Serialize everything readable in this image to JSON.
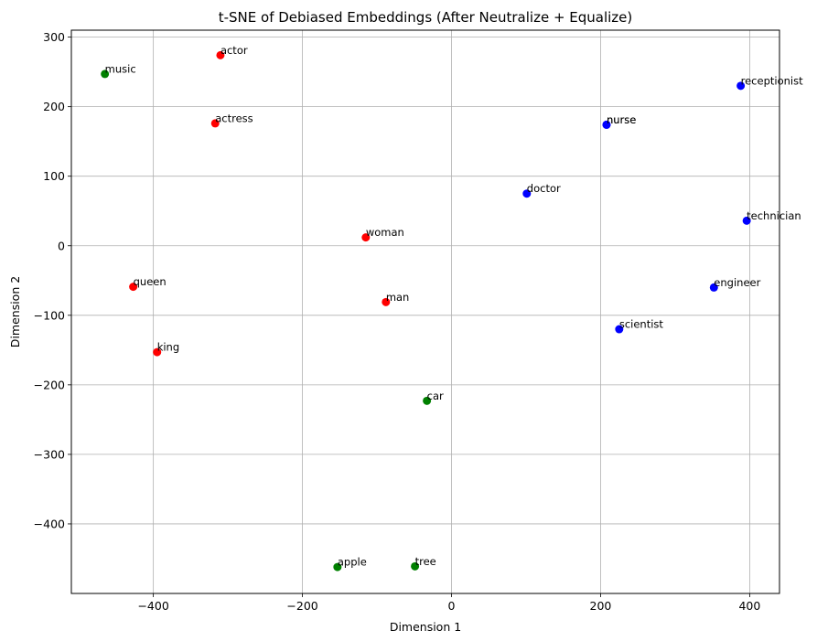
{
  "chart_data": {
    "type": "scatter",
    "title": "t-SNE of Debiased Embeddings (After Neutralize + Equalize)",
    "xlabel": "Dimension 1",
    "ylabel": "Dimension 2",
    "xlim": [
      -510,
      440
    ],
    "ylim": [
      -500,
      310
    ],
    "xticks": [
      -400,
      -200,
      0,
      200,
      400
    ],
    "yticks": [
      -400,
      -300,
      -200,
      -100,
      0,
      100,
      200,
      300
    ],
    "grid": true,
    "points": [
      {
        "label": "actor",
        "x": -310,
        "y": 274,
        "color": "#ff0000"
      },
      {
        "label": "actress",
        "x": -317,
        "y": 176,
        "color": "#ff0000"
      },
      {
        "label": "woman",
        "x": -115,
        "y": 12,
        "color": "#ff0000"
      },
      {
        "label": "man",
        "x": -88,
        "y": -81,
        "color": "#ff0000"
      },
      {
        "label": "queen",
        "x": -427,
        "y": -59,
        "color": "#ff0000"
      },
      {
        "label": "king",
        "x": -395,
        "y": -153,
        "color": "#ff0000"
      },
      {
        "label": "music",
        "x": -465,
        "y": 247,
        "color": "#008000"
      },
      {
        "label": "car",
        "x": -33,
        "y": -223,
        "color": "#008000"
      },
      {
        "label": "apple",
        "x": -153,
        "y": -462,
        "color": "#008000"
      },
      {
        "label": "tree",
        "x": -49,
        "y": -461,
        "color": "#008000"
      },
      {
        "label": "receptionist",
        "x": 388,
        "y": 230,
        "color": "#0000ff"
      },
      {
        "label": "nurse",
        "x": 208,
        "y": 174,
        "color": "#0000ff"
      },
      {
        "label": "nurse",
        "x": 208,
        "y": 174,
        "color": "#0000ff"
      },
      {
        "label": "doctor",
        "x": 101,
        "y": 75,
        "color": "#0000ff"
      },
      {
        "label": "technician",
        "x": 396,
        "y": 36,
        "color": "#0000ff"
      },
      {
        "label": "engineer",
        "x": 352,
        "y": -60,
        "color": "#0000ff"
      },
      {
        "label": "scientist",
        "x": 225,
        "y": -120,
        "color": "#0000ff"
      }
    ]
  }
}
